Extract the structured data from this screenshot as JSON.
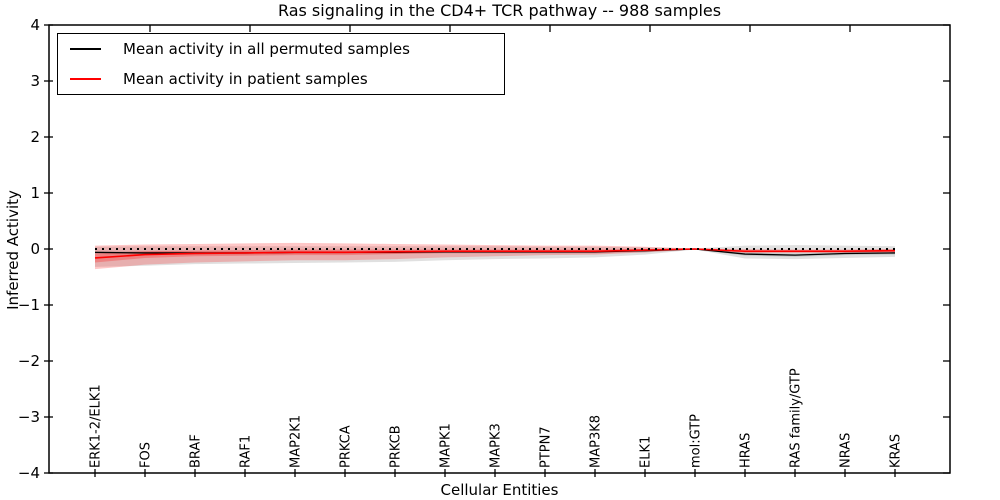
{
  "chart_data": {
    "type": "line",
    "title": "Ras signaling in the CD4+ TCR pathway -- 988 samples",
    "xlabel": "Cellular Entities",
    "ylabel": "Inferred Activity",
    "ylim": [
      -4,
      4
    ],
    "ytick_values": [
      4,
      3,
      2,
      1,
      0,
      -1,
      -2,
      -3,
      -4
    ],
    "ytick_labels": [
      "4",
      "3",
      "2",
      "1",
      "0",
      "−1",
      "−2",
      "−3",
      "−4"
    ],
    "grid": false,
    "legend_position": "upper left",
    "frame": true,
    "zero_reference_line": {
      "y": 0,
      "style": "dotted",
      "color": "#000000"
    },
    "categories": [
      "ERK1-2/ELK1",
      "FOS",
      "BRAF",
      "RAF1",
      "MAP2K1",
      "PRKCA",
      "PRKCB",
      "MAPK1",
      "MAPK3",
      "PTPN7",
      "MAP3K8",
      "ELK1",
      "mol:GTP",
      "HRAS",
      "RAS family/GTP",
      "NRAS",
      "KRAS"
    ],
    "series": [
      {
        "name": "Mean activity in all permuted samples",
        "color": "#000000",
        "band_color": "rgba(0,0,0,0.12)",
        "inner_band_color": "rgba(0,0,0,0.10)",
        "values": [
          -0.06,
          -0.07,
          -0.07,
          -0.07,
          -0.06,
          -0.06,
          -0.06,
          -0.05,
          -0.05,
          -0.05,
          -0.05,
          -0.03,
          0.0,
          -0.09,
          -0.11,
          -0.08,
          -0.07
        ],
        "band_hi": [
          0.04,
          0.05,
          0.05,
          0.05,
          0.05,
          0.05,
          0.05,
          0.05,
          0.05,
          0.04,
          0.04,
          0.03,
          0.01,
          0.06,
          0.07,
          0.06,
          0.05
        ],
        "band_lo": [
          -0.32,
          -0.3,
          -0.27,
          -0.26,
          -0.25,
          -0.24,
          -0.23,
          -0.2,
          -0.18,
          -0.17,
          -0.15,
          -0.1,
          -0.01,
          -0.17,
          -0.18,
          -0.16,
          -0.14
        ],
        "inner_hi": [
          -0.03,
          -0.04,
          -0.04,
          -0.04,
          -0.03,
          -0.03,
          -0.03,
          -0.02,
          -0.02,
          -0.02,
          -0.02,
          0.0,
          0.01,
          -0.06,
          -0.08,
          -0.05,
          -0.04
        ],
        "inner_lo": [
          -0.09,
          -0.1,
          -0.1,
          -0.1,
          -0.09,
          -0.09,
          -0.09,
          -0.08,
          -0.08,
          -0.08,
          -0.08,
          -0.06,
          -0.01,
          -0.12,
          -0.14,
          -0.11,
          -0.1
        ]
      },
      {
        "name": "Mean activity in patient samples",
        "color": "#ff0000",
        "band_color": "rgba(255,0,0,0.22)",
        "inner_band_color": "rgba(255,0,0,0.25)",
        "values": [
          -0.16,
          -0.1,
          -0.08,
          -0.07,
          -0.06,
          -0.06,
          -0.05,
          -0.04,
          -0.04,
          -0.04,
          -0.04,
          -0.02,
          0.0,
          -0.04,
          -0.04,
          -0.04,
          -0.03
        ],
        "band_hi": [
          0.06,
          0.08,
          0.09,
          0.1,
          0.11,
          0.1,
          0.09,
          0.08,
          0.07,
          0.06,
          0.06,
          0.04,
          0.01,
          0.0,
          -0.01,
          -0.01,
          0.0
        ],
        "band_lo": [
          -0.36,
          -0.28,
          -0.24,
          -0.22,
          -0.2,
          -0.2,
          -0.18,
          -0.15,
          -0.13,
          -0.11,
          -0.1,
          -0.06,
          -0.01,
          -0.07,
          -0.07,
          -0.07,
          -0.06
        ],
        "inner_hi": [
          -0.08,
          -0.04,
          -0.03,
          -0.02,
          -0.01,
          -0.01,
          -0.01,
          -0.01,
          -0.01,
          -0.01,
          -0.01,
          0.0,
          0.005,
          -0.02,
          -0.02,
          -0.02,
          -0.01
        ],
        "inner_lo": [
          -0.24,
          -0.16,
          -0.13,
          -0.12,
          -0.11,
          -0.11,
          -0.09,
          -0.07,
          -0.07,
          -0.07,
          -0.07,
          -0.04,
          -0.005,
          -0.06,
          -0.06,
          -0.06,
          -0.05
        ]
      }
    ]
  }
}
